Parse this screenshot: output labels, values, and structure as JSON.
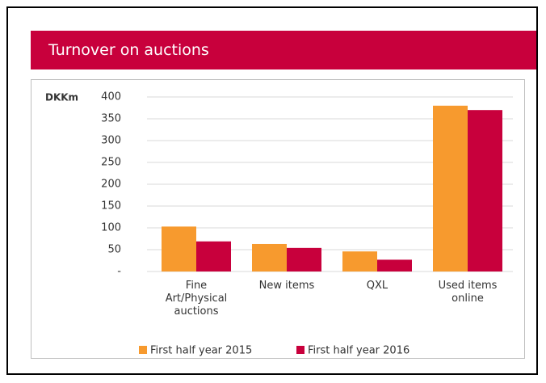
{
  "chart_data": {
    "type": "bar",
    "title": "Turnover on auctions",
    "y_label": "DKKm",
    "categories": [
      "Fine Art/Physical auctions",
      "New items",
      "QXL",
      "Used items online"
    ],
    "series": [
      {
        "name": "First half year 2015",
        "color": "#f79a2e",
        "values": [
          103,
          63,
          46,
          380
        ]
      },
      {
        "name": "First half year 2016",
        "color": "#c8003c",
        "values": [
          69,
          54,
          27,
          370
        ]
      }
    ],
    "ylim": [
      0,
      400
    ],
    "yticks": [
      {
        "value": 0,
        "label": "-"
      },
      50,
      100,
      150,
      200,
      250,
      300,
      350,
      400
    ],
    "grid": true,
    "legend": "bottom"
  }
}
